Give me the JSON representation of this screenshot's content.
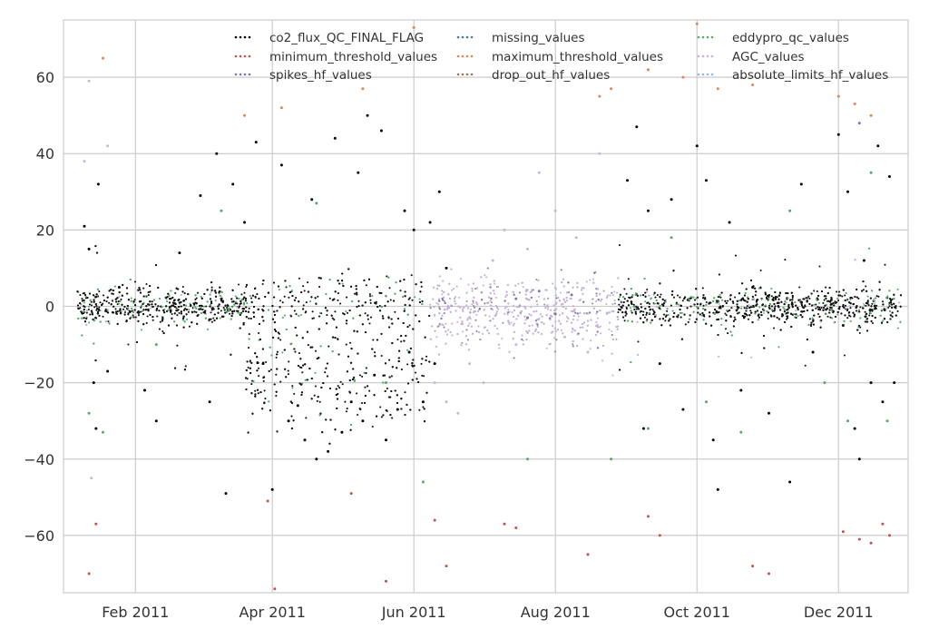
{
  "chart_data": {
    "type": "scatter",
    "title": "",
    "xlabel": "",
    "ylabel": "",
    "x_type": "date",
    "xlim": [
      "2011-01-01",
      "2011-12-31"
    ],
    "ylim": [
      -75,
      75
    ],
    "grid": true,
    "legend_position": "top",
    "x_ticks": [
      {
        "date": "2011-02-01",
        "label": "Feb 2011"
      },
      {
        "date": "2011-04-01",
        "label": "Apr 2011"
      },
      {
        "date": "2011-06-01",
        "label": "Jun 2011"
      },
      {
        "date": "2011-08-01",
        "label": "Aug 2011"
      },
      {
        "date": "2011-10-01",
        "label": "Oct 2011"
      },
      {
        "date": "2011-12-01",
        "label": "Dec 2011"
      }
    ],
    "y_ticks": [
      {
        "value": 60,
        "label": "60"
      },
      {
        "value": 40,
        "label": "40"
      },
      {
        "value": 20,
        "label": "20"
      },
      {
        "value": 0,
        "label": "0"
      },
      {
        "value": -20,
        "label": "−20"
      },
      {
        "value": -40,
        "label": "−40"
      },
      {
        "value": -60,
        "label": "−60"
      }
    ],
    "series": [
      {
        "name": "co2_flux_QC_FINAL_FLAG",
        "color": "#000000",
        "points": [
          [
            "2011-01-10",
            21
          ],
          [
            "2011-01-12",
            15
          ],
          [
            "2011-01-14",
            -20
          ],
          [
            "2011-01-15",
            -32
          ],
          [
            "2011-01-16",
            32
          ],
          [
            "2011-01-20",
            -17
          ],
          [
            "2011-01-25",
            5
          ],
          [
            "2011-02-05",
            -22
          ],
          [
            "2011-02-10",
            -30
          ],
          [
            "2011-02-20",
            14
          ],
          [
            "2011-03-01",
            29
          ],
          [
            "2011-03-05",
            -25
          ],
          [
            "2011-03-08",
            40
          ],
          [
            "2011-03-12",
            -49
          ],
          [
            "2011-03-15",
            32
          ],
          [
            "2011-03-20",
            22
          ],
          [
            "2011-03-25",
            43
          ],
          [
            "2011-03-28",
            -15
          ],
          [
            "2011-04-01",
            -48
          ],
          [
            "2011-04-05",
            37
          ],
          [
            "2011-04-08",
            -30
          ],
          [
            "2011-04-12",
            -26
          ],
          [
            "2011-04-15",
            -35
          ],
          [
            "2011-04-18",
            28
          ],
          [
            "2011-04-20",
            -40
          ],
          [
            "2011-04-25",
            -38
          ],
          [
            "2011-04-28",
            44
          ],
          [
            "2011-05-01",
            -33
          ],
          [
            "2011-05-05",
            -25
          ],
          [
            "2011-05-08",
            35
          ],
          [
            "2011-05-10",
            -30
          ],
          [
            "2011-05-12",
            50
          ],
          [
            "2011-05-15",
            -18
          ],
          [
            "2011-05-18",
            46
          ],
          [
            "2011-05-20",
            -35
          ],
          [
            "2011-05-25",
            -27
          ],
          [
            "2011-05-28",
            25
          ],
          [
            "2011-05-30",
            -12
          ],
          [
            "2011-06-01",
            20
          ],
          [
            "2011-06-05",
            -25
          ],
          [
            "2011-06-08",
            22
          ],
          [
            "2011-06-10",
            -15
          ],
          [
            "2011-06-12",
            30
          ],
          [
            "2011-06-15",
            10
          ],
          [
            "2011-09-01",
            33
          ],
          [
            "2011-09-05",
            47
          ],
          [
            "2011-09-08",
            -32
          ],
          [
            "2011-09-10",
            25
          ],
          [
            "2011-09-15",
            -15
          ],
          [
            "2011-09-20",
            28
          ],
          [
            "2011-09-25",
            -27
          ],
          [
            "2011-10-01",
            42
          ],
          [
            "2011-10-05",
            33
          ],
          [
            "2011-10-08",
            -35
          ],
          [
            "2011-10-10",
            -48
          ],
          [
            "2011-10-15",
            22
          ],
          [
            "2011-10-20",
            -22
          ],
          [
            "2011-10-25",
            5
          ],
          [
            "2011-11-01",
            -28
          ],
          [
            "2011-11-10",
            -46
          ],
          [
            "2011-11-15",
            32
          ],
          [
            "2011-11-20",
            -12
          ],
          [
            "2011-12-01",
            45
          ],
          [
            "2011-12-03",
            -5
          ],
          [
            "2011-12-05",
            30
          ],
          [
            "2011-12-08",
            -32
          ],
          [
            "2011-12-10",
            -40
          ],
          [
            "2011-12-12",
            12
          ],
          [
            "2011-12-15",
            -20
          ],
          [
            "2011-12-18",
            42
          ],
          [
            "2011-12-20",
            -25
          ],
          [
            "2011-12-23",
            34
          ],
          [
            "2011-12-25",
            -20
          ]
        ]
      },
      {
        "name": "missing_values",
        "color": "#4c72b0",
        "points": []
      },
      {
        "name": "eddypro_qc_values",
        "color": "#55a868",
        "points": [
          [
            "2011-01-12",
            -28
          ],
          [
            "2011-01-18",
            -33
          ],
          [
            "2011-02-10",
            -10
          ],
          [
            "2011-03-10",
            25
          ],
          [
            "2011-04-20",
            27
          ],
          [
            "2011-05-20",
            -20
          ],
          [
            "2011-06-05",
            -46
          ],
          [
            "2011-07-20",
            -40
          ],
          [
            "2011-08-25",
            -40
          ],
          [
            "2011-09-10",
            -32
          ],
          [
            "2011-09-20",
            18
          ],
          [
            "2011-10-05",
            -25
          ],
          [
            "2011-10-20",
            -33
          ],
          [
            "2011-11-10",
            25
          ],
          [
            "2011-11-25",
            -20
          ],
          [
            "2011-12-05",
            -30
          ],
          [
            "2011-12-15",
            35
          ],
          [
            "2011-12-22",
            -30
          ]
        ]
      },
      {
        "name": "minimum_threshold_values",
        "color": "#c44e52",
        "points": [
          [
            "2011-01-15",
            -57
          ],
          [
            "2011-01-12",
            -70
          ],
          [
            "2011-03-30",
            -51
          ],
          [
            "2011-04-02",
            -74
          ],
          [
            "2011-05-05",
            -49
          ],
          [
            "2011-05-20",
            -72
          ],
          [
            "2011-06-10",
            -56
          ],
          [
            "2011-06-15",
            -68
          ],
          [
            "2011-07-10",
            -57
          ],
          [
            "2011-07-15",
            -58
          ],
          [
            "2011-08-15",
            -65
          ],
          [
            "2011-09-10",
            -55
          ],
          [
            "2011-09-15",
            -60
          ],
          [
            "2011-10-25",
            -68
          ],
          [
            "2011-11-01",
            -70
          ],
          [
            "2011-12-03",
            -59
          ],
          [
            "2011-12-10",
            -61
          ],
          [
            "2011-12-15",
            -62
          ],
          [
            "2011-12-20",
            -57
          ],
          [
            "2011-12-23",
            -60
          ]
        ]
      },
      {
        "name": "maximum_threshold_values",
        "color": "#dd8452",
        "points": [
          [
            "2011-01-18",
            65
          ],
          [
            "2011-03-20",
            50
          ],
          [
            "2011-04-05",
            52
          ],
          [
            "2011-05-10",
            57
          ],
          [
            "2011-06-01",
            73
          ],
          [
            "2011-08-20",
            55
          ],
          [
            "2011-08-25",
            57
          ],
          [
            "2011-09-10",
            62
          ],
          [
            "2011-09-25",
            60
          ],
          [
            "2011-10-01",
            74
          ],
          [
            "2011-10-10",
            57
          ],
          [
            "2011-10-25",
            58
          ],
          [
            "2011-12-01",
            55
          ],
          [
            "2011-12-08",
            53
          ],
          [
            "2011-12-15",
            50
          ]
        ]
      },
      {
        "name": "AGC_values",
        "color": "#c9b3dc",
        "points": [
          [
            "2011-06-10",
            -20
          ],
          [
            "2011-06-15",
            -25
          ],
          [
            "2011-06-20",
            -28
          ],
          [
            "2011-06-25",
            -15
          ],
          [
            "2011-07-01",
            -20
          ],
          [
            "2011-07-05",
            12
          ],
          [
            "2011-07-10",
            20
          ],
          [
            "2011-07-15",
            -10
          ],
          [
            "2011-07-20",
            15
          ],
          [
            "2011-07-25",
            35
          ],
          [
            "2011-08-01",
            25
          ],
          [
            "2011-08-05",
            -8
          ],
          [
            "2011-08-10",
            18
          ],
          [
            "2011-08-15",
            -12
          ],
          [
            "2011-08-20",
            40
          ],
          [
            "2011-01-10",
            38
          ],
          [
            "2011-01-12",
            59
          ],
          [
            "2011-01-13",
            -45
          ],
          [
            "2011-01-20",
            42
          ]
        ]
      },
      {
        "name": "spikes_hf_values",
        "color": "#8172b2",
        "points": [
          [
            "2011-07-15",
            2
          ],
          [
            "2011-07-20",
            -3
          ],
          [
            "2011-07-25",
            4
          ],
          [
            "2011-08-01",
            -2
          ],
          [
            "2011-08-08",
            3
          ],
          [
            "2011-12-10",
            48
          ]
        ]
      },
      {
        "name": "drop_out_hf_values",
        "color": "#937860",
        "points": []
      },
      {
        "name": "absolute_limits_hf_values",
        "color": "#8fb8dc",
        "points": []
      }
    ]
  }
}
